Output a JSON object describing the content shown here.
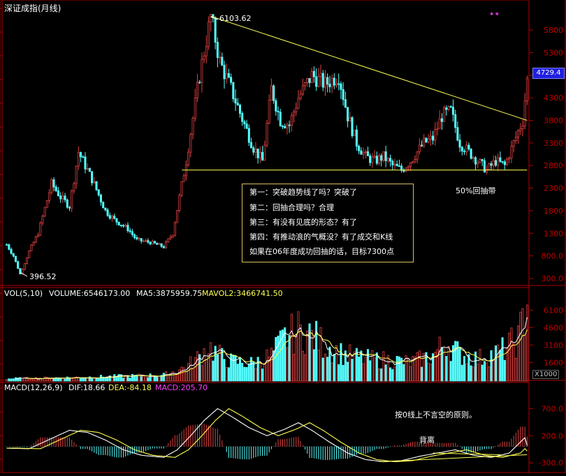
{
  "window_title": "深证成指(月线)",
  "colors": {
    "background": "#000000",
    "up": "#e04040",
    "down": "#54ffff",
    "axis": "#b00000",
    "axis_text": "#c00000",
    "yellow": "#ffff55",
    "white": "#ffffff",
    "magenta": "#ff40ff",
    "highlight_box": "#2020e0"
  },
  "price_panel": {
    "peak_label": "6103.62",
    "low_label": "396.52",
    "current_value": "4729.4",
    "support_label": "50%回抽带",
    "y_ticks": [
      "5800",
      "5300",
      "4800",
      "4300",
      "3800",
      "3300",
      "2800",
      "2300",
      "1800",
      "1300",
      "800.0",
      "300.0"
    ]
  },
  "annotation": {
    "lines": [
      "第一：突破趋势线了吗？突破了",
      "第二：回抽合理吗？合理",
      "第三：有没有见底的形态？有了",
      "第四：有推动浪的气概没？有了成交和K线",
      "如果在06年度成功回抽的话，目标7300点"
    ]
  },
  "volume_panel": {
    "label": "VOL(5,10)",
    "volume": "VOLUME:6546173.00",
    "ma5": "MA5:3875959.75",
    "mavol2": "MAVOL2:3466741.50",
    "y_ticks": [
      "6100",
      "4600",
      "3100",
      "1600"
    ],
    "unit": "X1000"
  },
  "macd_panel": {
    "label": "MACD(12,26,9)",
    "dif": "DIF:18.66",
    "dea": "DEA:-84.18",
    "macd": "MACD:205.70",
    "y_ticks": [
      "700.0",
      "200.0",
      "-300.0"
    ],
    "note": "按0线上不言空的原则。",
    "divergence": "背离"
  },
  "chart_data": {
    "type": "candlestick",
    "title": "深证成指(月线)",
    "price_scale": [
      300,
      5800
    ],
    "price_trend": [
      [
        0,
        1050
      ],
      [
        3,
        800
      ],
      [
        6,
        396.52
      ],
      [
        10,
        900
      ],
      [
        14,
        1300
      ],
      [
        20,
        2400
      ],
      [
        24,
        2100
      ],
      [
        28,
        1900
      ],
      [
        32,
        3100
      ],
      [
        38,
        2500
      ],
      [
        44,
        1800
      ],
      [
        48,
        1600
      ],
      [
        54,
        1400
      ],
      [
        58,
        1150
      ],
      [
        64,
        1100
      ],
      [
        70,
        1000
      ],
      [
        74,
        1300
      ],
      [
        80,
        2900
      ],
      [
        86,
        4800
      ],
      [
        91,
        6103.62
      ],
      [
        95,
        5100
      ],
      [
        100,
        4500
      ],
      [
        106,
        3700
      ],
      [
        110,
        3200
      ],
      [
        114,
        2900
      ],
      [
        118,
        4500
      ],
      [
        122,
        3800
      ],
      [
        126,
        3700
      ],
      [
        130,
        4300
      ],
      [
        136,
        4800
      ],
      [
        142,
        4600
      ],
      [
        148,
        4800
      ],
      [
        152,
        3900
      ],
      [
        156,
        3300
      ],
      [
        160,
        3000
      ],
      [
        164,
        2900
      ],
      [
        168,
        3000
      ],
      [
        172,
        2800
      ],
      [
        176,
        2700
      ],
      [
        180,
        2900
      ],
      [
        186,
        3300
      ],
      [
        190,
        3400
      ],
      [
        194,
        3900
      ],
      [
        198,
        4000
      ],
      [
        202,
        3300
      ],
      [
        206,
        3100
      ],
      [
        210,
        2900
      ],
      [
        214,
        2700
      ],
      [
        218,
        2900
      ],
      [
        222,
        2800
      ],
      [
        226,
        3300
      ],
      [
        230,
        3800
      ],
      [
        232,
        4729.4
      ]
    ],
    "trendline": [
      [
        91,
        6103.62
      ],
      [
        232,
        3800
      ]
    ],
    "support_line": [
      [
        80,
        2700
      ],
      [
        232,
        2700
      ]
    ],
    "volume_scale": [
      0,
      6600
    ],
    "volume_trend": [
      [
        0,
        200
      ],
      [
        30,
        300
      ],
      [
        50,
        400
      ],
      [
        70,
        500
      ],
      [
        80,
        1200
      ],
      [
        86,
        2100
      ],
      [
        90,
        3000
      ],
      [
        94,
        2300
      ],
      [
        100,
        1700
      ],
      [
        110,
        1500
      ],
      [
        118,
        2200
      ],
      [
        124,
        3700
      ],
      [
        130,
        4300
      ],
      [
        136,
        3900
      ],
      [
        142,
        3100
      ],
      [
        150,
        2300
      ],
      [
        160,
        1900
      ],
      [
        170,
        1800
      ],
      [
        180,
        1600
      ],
      [
        190,
        2200
      ],
      [
        196,
        3400
      ],
      [
        202,
        2300
      ],
      [
        210,
        1900
      ],
      [
        220,
        2500
      ],
      [
        228,
        3600
      ],
      [
        232,
        6546.173
      ]
    ],
    "macd_scale": [
      -350,
      950
    ],
    "macd_trend": [
      [
        0,
        -30
      ],
      [
        10,
        -40
      ],
      [
        20,
        150
      ],
      [
        28,
        300
      ],
      [
        36,
        260
      ],
      [
        44,
        120
      ],
      [
        52,
        -60
      ],
      [
        60,
        -160
      ],
      [
        70,
        -200
      ],
      [
        76,
        -60
      ],
      [
        82,
        200
      ],
      [
        88,
        480
      ],
      [
        94,
        700
      ],
      [
        100,
        560
      ],
      [
        108,
        350
      ],
      [
        116,
        200
      ],
      [
        124,
        320
      ],
      [
        130,
        440
      ],
      [
        136,
        300
      ],
      [
        144,
        80
      ],
      [
        152,
        -120
      ],
      [
        160,
        -240
      ],
      [
        168,
        -280
      ],
      [
        176,
        -260
      ],
      [
        184,
        -180
      ],
      [
        192,
        -120
      ],
      [
        200,
        -60
      ],
      [
        208,
        -160
      ],
      [
        216,
        -200
      ],
      [
        224,
        -120
      ],
      [
        232,
        205.7
      ]
    ],
    "dif_final": 18.66,
    "dea_final": -84.18
  }
}
